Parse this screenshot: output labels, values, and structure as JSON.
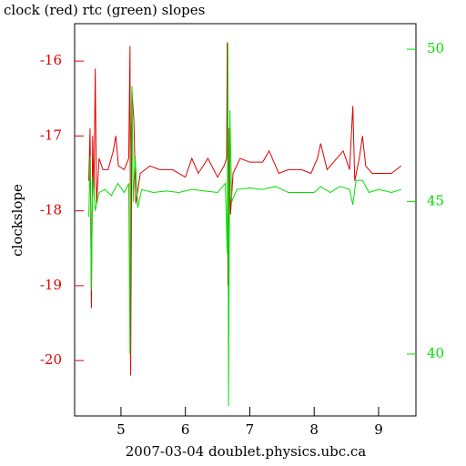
{
  "chart_data": {
    "type": "line",
    "title": "clock (red) rtc (green) slopes",
    "x_label": "2007-03-04 doublet.physics.ubc.ca",
    "y_label": "clockslope",
    "xlim": [
      4.28,
      9.58
    ],
    "xticks": [
      5,
      6,
      7,
      8,
      9
    ],
    "ylim": [
      -20.74,
      -15.5
    ],
    "yticks": [
      -20,
      -19,
      -18,
      -17,
      -16
    ],
    "y2lim": [
      37.97,
      50.84
    ],
    "y2ticks": [
      40,
      45,
      50
    ],
    "series": [
      {
        "name": "clock",
        "color": "#e00000",
        "x": [
          4.5,
          4.52,
          4.54,
          4.56,
          4.58,
          4.6,
          4.62,
          4.66,
          4.72,
          4.8,
          4.88,
          4.92,
          4.96,
          5.05,
          5.12,
          5.14,
          5.15,
          5.17,
          5.2,
          5.23,
          5.3,
          5.45,
          5.6,
          5.8,
          6.0,
          6.1,
          6.2,
          6.35,
          6.5,
          6.6,
          6.64,
          6.65,
          6.66,
          6.68,
          6.7,
          6.74,
          6.85,
          7.0,
          7.2,
          7.3,
          7.45,
          7.6,
          7.8,
          7.95,
          8.05,
          8.1,
          8.2,
          8.35,
          8.45,
          8.55,
          8.6,
          8.63,
          8.7,
          8.75,
          8.8,
          8.9,
          9.0,
          9.1,
          9.2,
          9.35
        ],
        "values": [
          -17.6,
          -16.9,
          -19.3,
          -17.0,
          -17.8,
          -16.1,
          -17.9,
          -17.3,
          -17.45,
          -17.45,
          -17.2,
          -17.0,
          -17.4,
          -17.45,
          -17.3,
          -15.8,
          -20.2,
          -16.4,
          -16.8,
          -17.9,
          -17.5,
          -17.4,
          -17.45,
          -17.45,
          -17.55,
          -17.3,
          -17.5,
          -17.3,
          -17.55,
          -17.4,
          -17.3,
          -15.75,
          -19.0,
          -16.9,
          -18.05,
          -17.5,
          -17.3,
          -17.35,
          -17.35,
          -17.2,
          -17.5,
          -17.45,
          -17.45,
          -17.5,
          -17.3,
          -17.1,
          -17.45,
          -17.3,
          -17.2,
          -17.45,
          -16.6,
          -17.6,
          -17.3,
          -17.0,
          -17.4,
          -17.5,
          -17.5,
          -17.5,
          -17.5,
          -17.4
        ]
      },
      {
        "name": "rtc",
        "color": "#00e000",
        "axis": "y2",
        "x": [
          4.5,
          4.52,
          4.54,
          4.56,
          4.6,
          4.66,
          4.75,
          4.85,
          4.95,
          5.05,
          5.12,
          5.14,
          5.15,
          5.17,
          5.19,
          5.22,
          5.26,
          5.32,
          5.5,
          5.7,
          5.9,
          6.1,
          6.3,
          6.5,
          6.62,
          6.65,
          6.66,
          6.67,
          6.69,
          6.72,
          6.8,
          7.0,
          7.2,
          7.4,
          7.6,
          7.8,
          8.0,
          8.1,
          8.25,
          8.4,
          8.55,
          8.6,
          8.65,
          8.75,
          8.85,
          9.0,
          9.2,
          9.35
        ],
        "values": [
          44.5,
          46.5,
          42.1,
          45.8,
          44.7,
          45.3,
          45.4,
          45.2,
          45.6,
          45.3,
          45.6,
          40.0,
          46.5,
          48.8,
          45.0,
          46.5,
          44.8,
          45.4,
          45.3,
          45.35,
          45.3,
          45.4,
          45.35,
          45.3,
          45.6,
          43.3,
          50.2,
          38.3,
          48.0,
          45.0,
          45.4,
          45.45,
          45.4,
          45.5,
          45.3,
          45.3,
          45.3,
          45.5,
          45.3,
          45.5,
          45.4,
          44.9,
          45.7,
          45.7,
          45.3,
          45.4,
          45.3,
          45.4
        ]
      }
    ]
  }
}
